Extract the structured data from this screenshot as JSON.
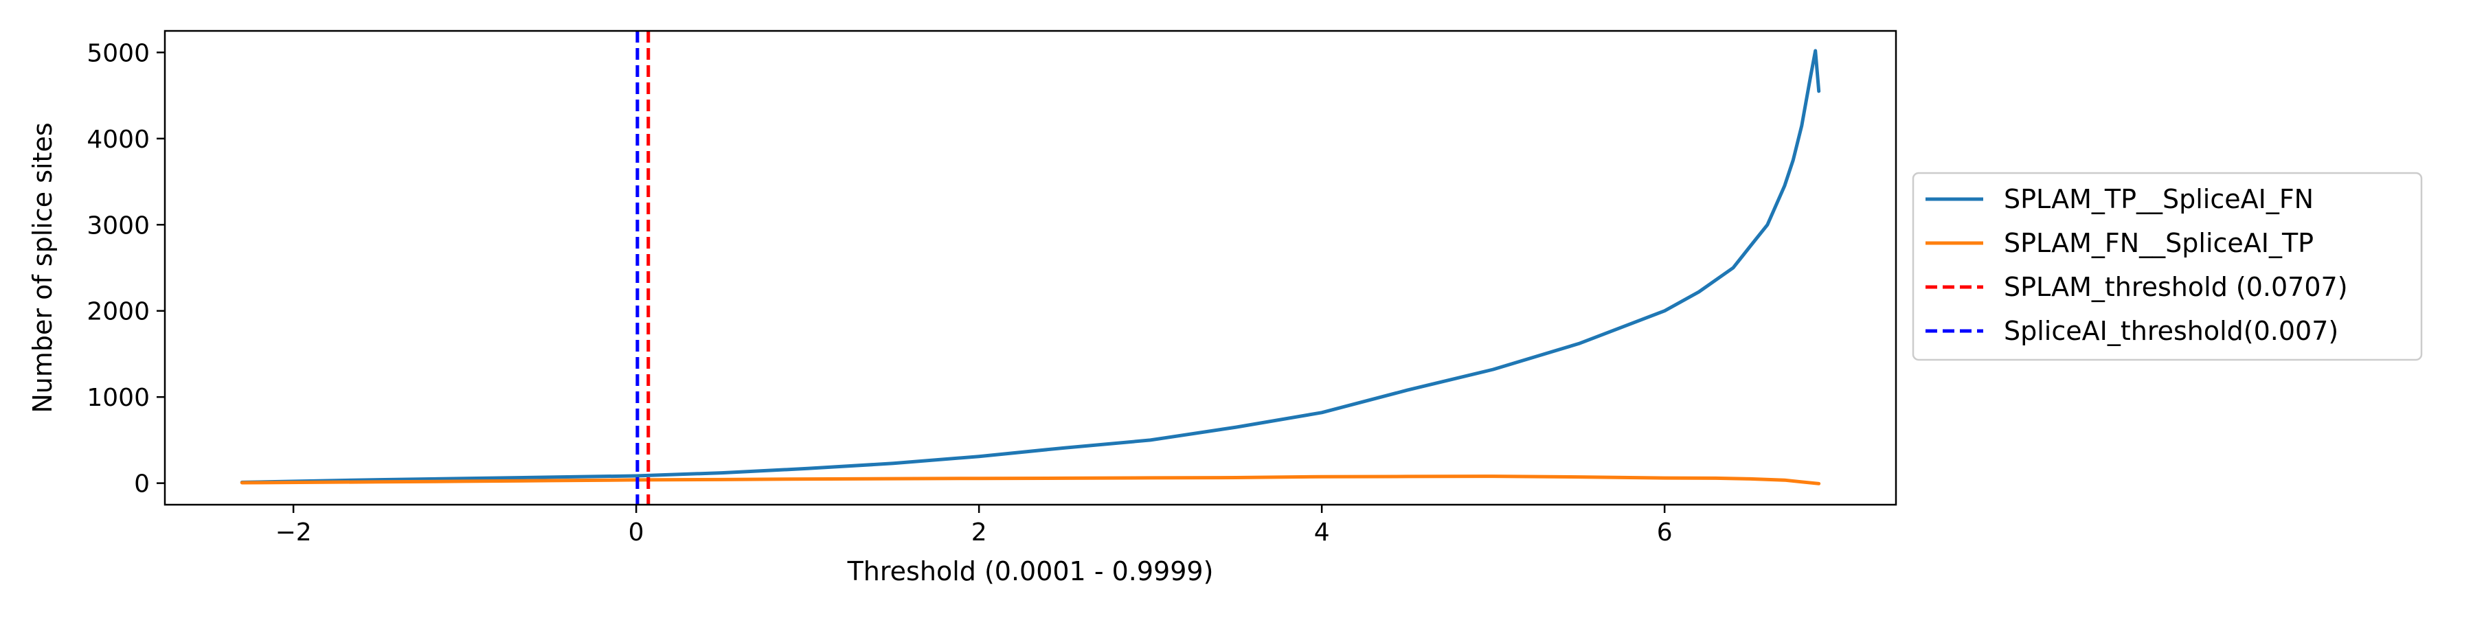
{
  "chart_data": {
    "type": "line",
    "title": "",
    "xlabel": "Threshold (0.0001 - 0.9999)",
    "ylabel": "Number of splice sites",
    "xlim": [
      -2.75,
      7.35
    ],
    "ylim": [
      -250,
      5250
    ],
    "xticks": [
      -2,
      0,
      2,
      4,
      6
    ],
    "xtick_labels": [
      "−2",
      "0",
      "2",
      "4",
      "6"
    ],
    "yticks": [
      0,
      1000,
      2000,
      3000,
      4000,
      5000
    ],
    "ytick_labels": [
      "0",
      "1000",
      "2000",
      "3000",
      "4000",
      "5000"
    ],
    "grid": false,
    "legend_position": "outside right, center",
    "series": [
      {
        "name": "SPLAM_TP__SpliceAI_FN",
        "color": "#1f77b4",
        "style": "solid",
        "x": [
          -2.3,
          -1.5,
          -1.0,
          -0.5,
          0.0,
          0.5,
          1.0,
          1.5,
          2.0,
          2.5,
          3.0,
          3.5,
          4.0,
          4.5,
          5.0,
          5.5,
          6.0,
          6.2,
          6.4,
          6.5,
          6.6,
          6.7,
          6.75,
          6.8,
          6.85,
          6.88,
          6.9
        ],
        "y": [
          10,
          40,
          55,
          70,
          85,
          120,
          170,
          230,
          310,
          410,
          500,
          650,
          820,
          1080,
          1320,
          1620,
          2000,
          2220,
          2500,
          2750,
          3000,
          3450,
          3750,
          4150,
          4700,
          5020,
          4550
        ]
      },
      {
        "name": "SPLAM_FN__SpliceAI_TP",
        "color": "#ff7f0e",
        "style": "solid",
        "x": [
          -2.3,
          -1.5,
          -1.0,
          -0.5,
          0.0,
          0.5,
          1.0,
          1.5,
          2.0,
          2.5,
          3.0,
          3.5,
          4.0,
          4.5,
          5.0,
          5.5,
          6.0,
          6.3,
          6.5,
          6.7,
          6.8,
          6.9
        ],
        "y": [
          5,
          15,
          22,
          30,
          38,
          42,
          48,
          52,
          55,
          58,
          62,
          65,
          75,
          78,
          80,
          72,
          60,
          58,
          50,
          35,
          15,
          -5
        ]
      }
    ],
    "vlines": [
      {
        "name": "SPLAM_threshold (0.0707)",
        "x": 0.0707,
        "color": "#ff0000",
        "style": "dashed"
      },
      {
        "name": "SpliceAI_threshold(0.007)",
        "x": 0.007,
        "color": "#0000ff",
        "style": "dashed"
      }
    ]
  }
}
